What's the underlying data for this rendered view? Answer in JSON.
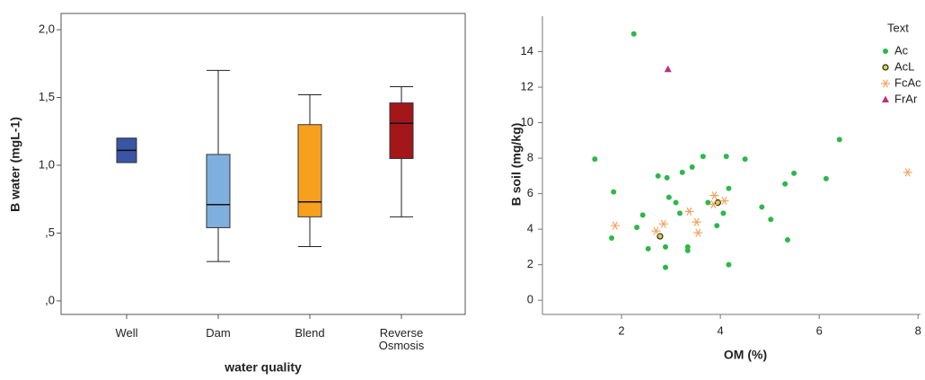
{
  "chart_data": [
    {
      "type": "box",
      "y_label": "B water (mgL-1)",
      "x_label": "water quality",
      "categories": [
        "Well",
        "Dam",
        "Blend",
        "Reverse Osmosis"
      ],
      "colors": [
        "#3a55a4",
        "#7fafdf",
        "#f7a01e",
        "#a3161a"
      ],
      "min": [
        1.02,
        0.29,
        0.4,
        0.62
      ],
      "q1": [
        1.02,
        0.54,
        0.62,
        1.05
      ],
      "median": [
        1.11,
        0.71,
        0.73,
        1.31
      ],
      "q3": [
        1.2,
        1.08,
        1.3,
        1.46
      ],
      "max": [
        1.2,
        1.7,
        1.52,
        1.58
      ],
      "ylim": [
        -0.1,
        2.12
      ],
      "yticks": [
        {
          "value": 0,
          "label": ",0"
        },
        {
          "value": 0.5,
          "label": ",5"
        },
        {
          "value": 1,
          "label": "1,0"
        },
        {
          "value": 1.5,
          "label": "1,5"
        },
        {
          "value": 2,
          "label": "2,0"
        }
      ]
    },
    {
      "type": "scatter",
      "x_label": "OM (%)",
      "y_label": "B soil (mg/kg)",
      "legend_title": "Text",
      "legend": "top-right",
      "xlim": [
        0.4,
        8.05
      ],
      "xticks": [
        2,
        4,
        6,
        8
      ],
      "ylim": [
        -0.8,
        16
      ],
      "yticks": [
        0,
        2,
        4,
        6,
        8,
        10,
        12,
        14
      ],
      "series": [
        {
          "name": "Ac",
          "color": "#2db84a",
          "marker": "circle",
          "x": [
            2.25,
            1.46,
            1.84,
            1.8,
            2.31,
            2.43,
            2.54,
            2.74,
            2.92,
            2.89,
            2.89,
            2.96,
            3.1,
            3.18,
            3.34,
            3.34,
            3.23,
            3.43,
            3.65,
            3.75,
            3.93,
            4.06,
            4.12,
            4.17,
            4.17,
            4.5,
            4.84,
            5.02,
            5.31,
            5.36,
            5.49,
            6.14,
            6.41
          ],
          "y": [
            15.0,
            7.95,
            6.1,
            3.5,
            4.1,
            4.8,
            2.9,
            7.0,
            6.9,
            3.0,
            1.85,
            5.8,
            5.5,
            4.9,
            3.0,
            2.8,
            7.2,
            7.5,
            8.1,
            5.5,
            4.2,
            4.9,
            8.1,
            6.3,
            2.0,
            7.95,
            5.25,
            4.55,
            6.55,
            3.4,
            7.15,
            6.85,
            9.05
          ]
        },
        {
          "name": "AcL",
          "color": "#e0d040",
          "marker": "open-circle",
          "x": [
            2.78,
            3.95
          ],
          "y": [
            3.6,
            5.5
          ]
        },
        {
          "name": "FcAc",
          "color": "#f4a460",
          "marker": "star",
          "x": [
            1.87,
            2.85,
            2.7,
            3.37,
            3.52,
            3.55,
            3.88,
            3.86,
            4.08,
            7.79
          ],
          "y": [
            4.2,
            4.3,
            3.9,
            5.0,
            4.4,
            3.8,
            5.9,
            5.4,
            5.6,
            7.2
          ]
        },
        {
          "name": "FrAr",
          "color": "#c0307a",
          "marker": "triangle",
          "x": [
            2.94
          ],
          "y": [
            13.0
          ]
        }
      ]
    }
  ]
}
